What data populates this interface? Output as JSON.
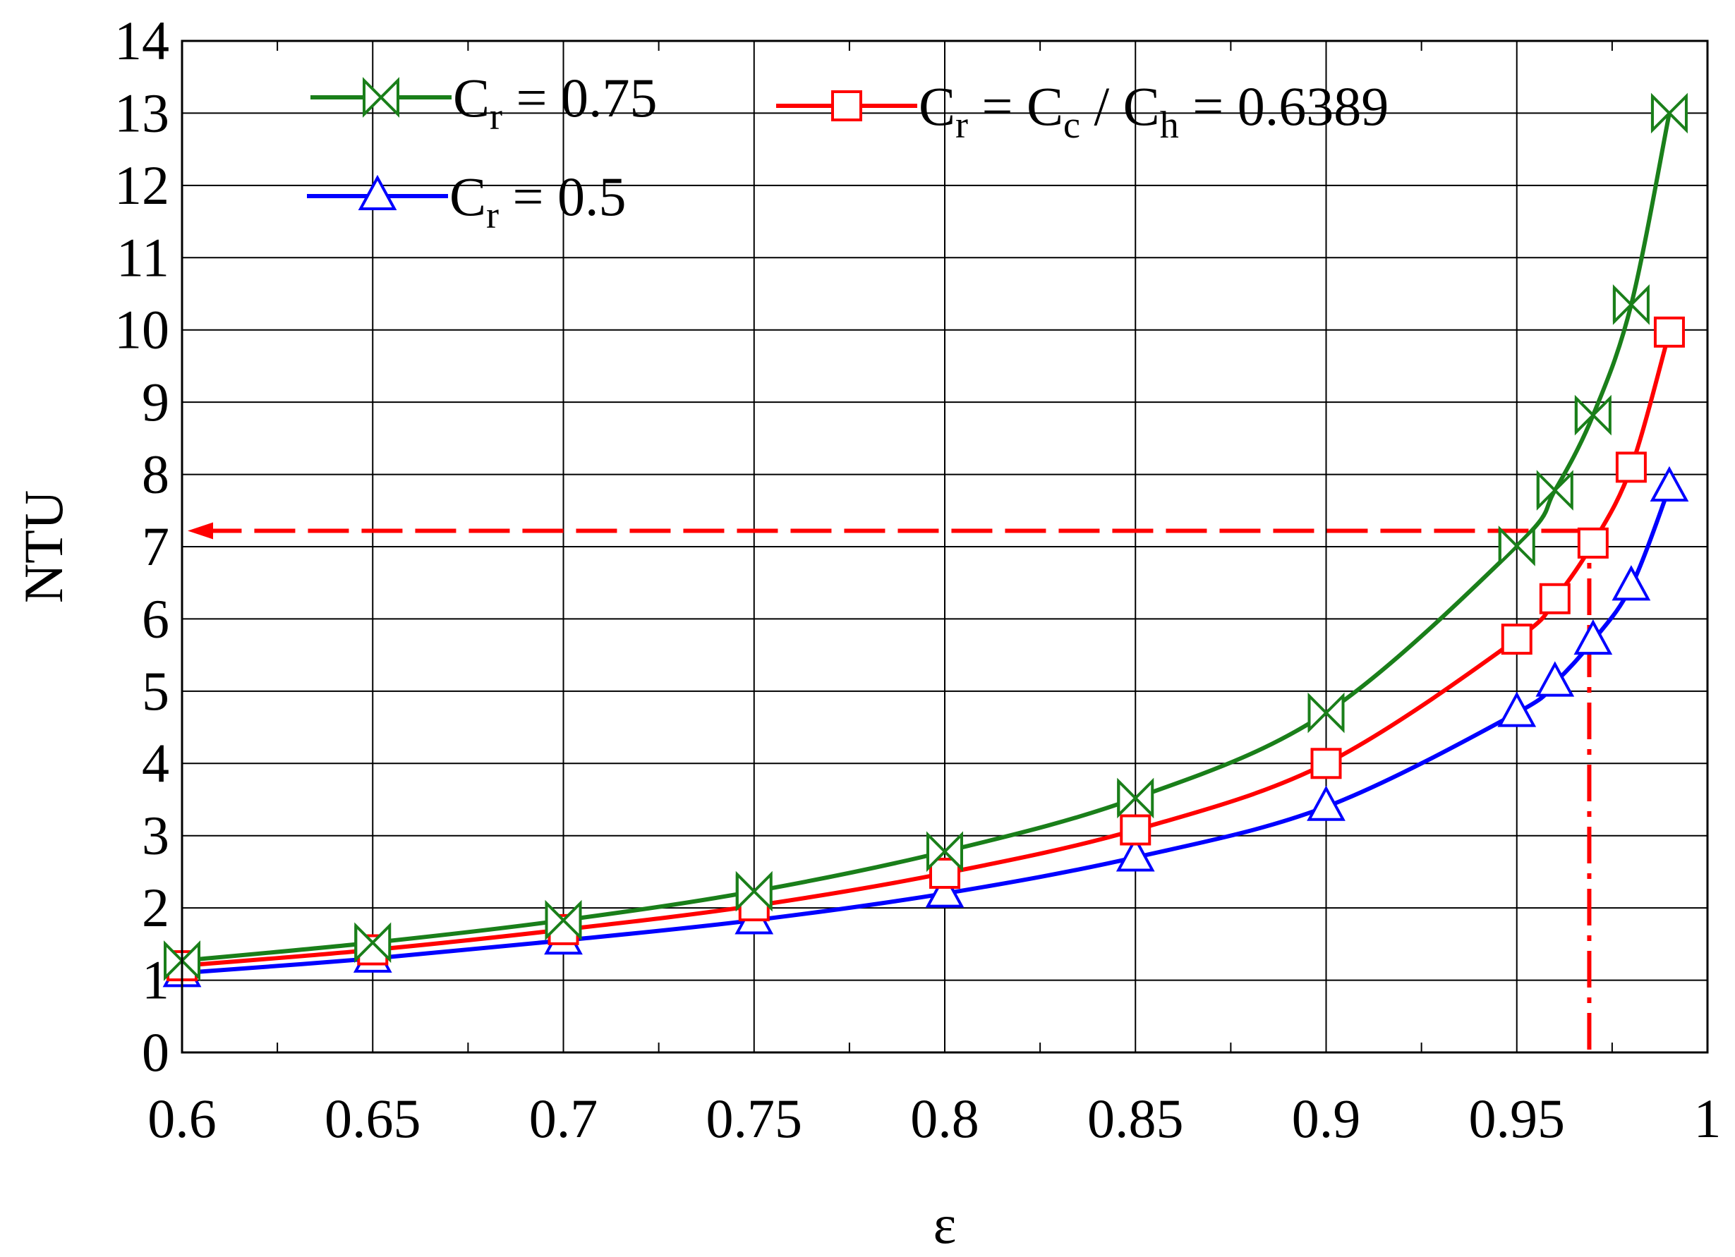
{
  "chart_data": {
    "type": "line",
    "xlabel": "ε",
    "ylabel": "NTU",
    "xlim": [
      0.6,
      1.0
    ],
    "ylim": [
      0,
      14
    ],
    "x_ticks": [
      "0.6",
      "0.65",
      "0.7",
      "0.75",
      "0.8",
      "0.85",
      "0.9",
      "0.95",
      "1"
    ],
    "y_ticks": [
      "0",
      "1",
      "2",
      "3",
      "4",
      "5",
      "6",
      "7",
      "8",
      "9",
      "10",
      "11",
      "12",
      "13",
      "14"
    ],
    "grid": true,
    "legend": [
      {
        "main": "C",
        "sub": "r",
        "rest": " = 0.75",
        "series": 0
      },
      {
        "main": "C",
        "sub": "r",
        "rest": " = C",
        "sub2": "c",
        "rest2": " / C",
        "sub3": "h",
        "rest3": " = 0.6389",
        "series": 1
      },
      {
        "main": "C",
        "sub": "r",
        "rest": " = 0.5",
        "series": 2
      }
    ],
    "series": [
      {
        "color": "#1a7f1a",
        "marker": "bowtie",
        "x": [
          0.6,
          0.65,
          0.7,
          0.75,
          0.8,
          0.85,
          0.9,
          0.95,
          0.96,
          0.97,
          0.98,
          0.99
        ],
        "y": [
          1.27,
          1.52,
          1.83,
          2.23,
          2.78,
          3.52,
          4.7,
          7.01,
          7.78,
          8.82,
          10.35,
          13.0
        ]
      },
      {
        "color": "#ff0000",
        "marker": "square",
        "x": [
          0.6,
          0.65,
          0.7,
          0.75,
          0.8,
          0.85,
          0.9,
          0.95,
          0.96,
          0.97,
          0.98,
          0.99
        ],
        "y": [
          1.2,
          1.42,
          1.7,
          2.03,
          2.48,
          3.08,
          4.0,
          5.72,
          6.28,
          7.05,
          8.1,
          9.97
        ]
      },
      {
        "color": "#0000ff",
        "marker": "triangle",
        "x": [
          0.6,
          0.65,
          0.7,
          0.75,
          0.8,
          0.85,
          0.9,
          0.95,
          0.96,
          0.97,
          0.98,
          0.99
        ],
        "y": [
          1.1,
          1.3,
          1.55,
          1.83,
          2.2,
          2.7,
          3.4,
          4.7,
          5.12,
          5.7,
          6.45,
          7.82
        ]
      }
    ],
    "annotation": {
      "color": "#ff0000",
      "x": 0.969,
      "y": 7.22
    }
  }
}
